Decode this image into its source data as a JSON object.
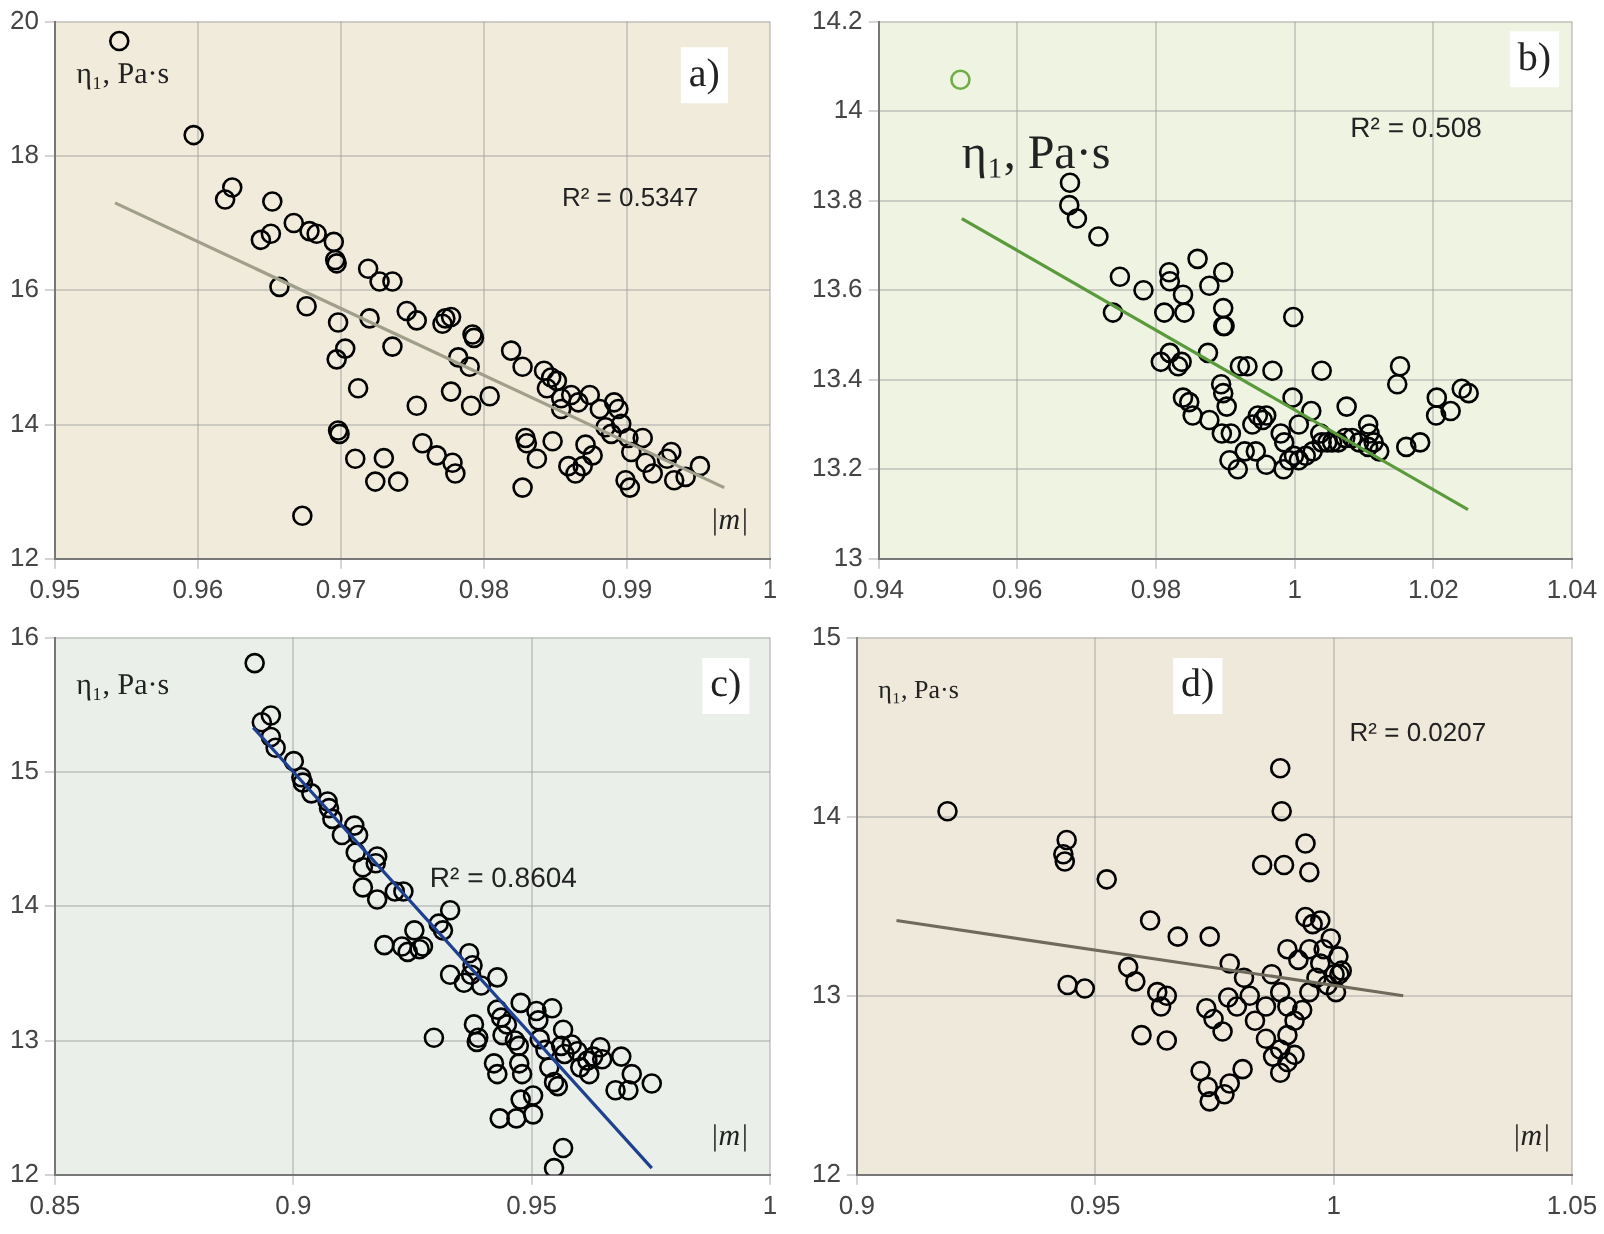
{
  "chart_data": [
    {
      "type": "scatter",
      "ylabel": "η₁, Pa·s",
      "xlabel": "|m|",
      "annotations": [
        "a)",
        "R² = 0.5347"
      ],
      "xlim": [
        0.95,
        1
      ],
      "xticks": [
        0.95,
        0.96,
        0.97,
        0.98,
        0.99,
        1
      ],
      "ylim": [
        12,
        20
      ],
      "yticks": [
        12,
        14,
        16,
        18,
        20
      ],
      "grid": true,
      "series": [
        {
          "color": "#000000",
          "marker": "circle",
          "x": [
            0.9545,
            0.9597,
            0.9624,
            0.9619,
            0.9652,
            0.9644,
            0.9651,
            0.9667,
            0.9678,
            0.9683,
            0.9695,
            0.9696,
            0.9697,
            0.9657,
            0.9676,
            0.9698,
            0.972,
            0.9719,
            0.9727,
            0.9736,
            0.9703,
            0.9697,
            0.9712,
            0.9698,
            0.9699,
            0.971,
            0.973,
            0.9724,
            0.974,
            0.9736,
            0.9746,
            0.9753,
            0.9771,
            0.9773,
            0.9777,
            0.9792,
            0.9793,
            0.9782,
            0.979,
            0.9777,
            0.9753,
            0.9791,
            0.9804,
            0.9757,
            0.9767,
            0.9778,
            0.978,
            0.9819,
            0.9827,
            0.9829,
            0.983,
            0.9837,
            0.9827,
            0.9842,
            0.9847,
            0.9844,
            0.9851,
            0.9854,
            0.9848,
            0.9854,
            0.9861,
            0.9866,
            0.9859,
            0.9864,
            0.9869,
            0.9871,
            0.9876,
            0.9874,
            0.9881,
            0.9885,
            0.9889,
            0.9891,
            0.9894,
            0.9896,
            0.9901,
            0.9903,
            0.9899,
            0.9902,
            0.9913,
            0.9918,
            0.9928,
            0.9931,
            0.9933,
            0.9941,
            0.9951,
            0.9911,
            0.9673
          ],
          "values": [
            19.71,
            18.31,
            17.53,
            17.35,
            17.32,
            16.75,
            16.84,
            17.0,
            16.88,
            16.84,
            16.72,
            16.45,
            16.4,
            16.05,
            15.76,
            15.52,
            15.58,
            16.32,
            16.13,
            16.13,
            15.13,
            14.97,
            14.54,
            13.91,
            13.86,
            13.49,
            13.5,
            13.15,
            13.15,
            15.16,
            15.69,
            15.55,
            15.5,
            15.58,
            15.6,
            15.34,
            15.29,
            15.0,
            14.86,
            14.49,
            14.28,
            14.28,
            14.42,
            13.72,
            13.54,
            13.43,
            13.27,
            15.1,
            14.86,
            13.8,
            13.72,
            13.49,
            13.06,
            14.8,
            14.7,
            14.54,
            14.65,
            14.39,
            13.75,
            14.23,
            14.44,
            14.33,
            13.38,
            13.27,
            13.38,
            13.7,
            13.54,
            14.44,
            14.23,
            13.96,
            13.86,
            14.33,
            14.23,
            14.01,
            13.8,
            13.59,
            13.17,
            13.06,
            13.43,
            13.27,
            13.49,
            13.59,
            13.17,
            13.22,
            13.38,
            13.8,
            12.64
          ]
        },
        {
          "type": "line",
          "color": "#a09f8c",
          "x": [
            0.9542,
            0.9968
          ],
          "values": [
            17.3,
            13.06
          ]
        }
      ]
    },
    {
      "type": "scatter",
      "ylabel": "η₁, Pa·s",
      "annotations": [
        "b)",
        "R² = 0.508"
      ],
      "xlim": [
        0.94,
        1.04
      ],
      "xticks": [
        0.94,
        0.96,
        0.98,
        1,
        1.02,
        1.04
      ],
      "ylim": [
        13,
        14.2
      ],
      "yticks": [
        13,
        13.2,
        13.4,
        13.6,
        13.8,
        14,
        14.2
      ],
      "grid": true,
      "series": [
        {
          "color": "#70ad47",
          "marker": "circle",
          "x": [
            0.9518
          ],
          "values": [
            14.07
          ]
        },
        {
          "color": "#000000",
          "marker": "circle",
          "x": [
            0.9676,
            0.9675,
            0.9686,
            0.9717,
            0.9748,
            0.9738,
            0.9782,
            0.9812,
            0.9819,
            0.982,
            0.9839,
            0.9841,
            0.986,
            0.9877,
            0.9897,
            0.9897,
            0.9897,
            0.9899,
            0.9807,
            0.982,
            0.9832,
            0.9837,
            0.9875,
            0.9839,
            0.9848,
            0.9853,
            0.9877,
            0.9894,
            0.9897,
            0.9902,
            0.9895,
            0.9908,
            0.9906,
            0.9918,
            0.9928,
            0.9921,
            0.9932,
            0.9939,
            0.9947,
            0.9954,
            0.9959,
            0.9944,
            0.9959,
            0.9968,
            0.998,
            0.9985,
            0.9984,
            0.9992,
            0.9999,
            0.9998,
            0.9997,
            1.0006,
            1.0006,
            1.0016,
            1.0026,
            1.0039,
            1.0024,
            1.0039,
            1.0037,
            1.0047,
            1.0054,
            1.0063,
            1.0073,
            1.0083,
            1.0075,
            1.0093,
            1.0106,
            1.0114,
            1.0122,
            1.0106,
            1.0108,
            1.0148,
            1.0152,
            1.0161,
            1.0181,
            1.0205,
            1.0204,
            1.0225,
            1.0241,
            1.0251
          ],
          "values": [
            13.84,
            13.79,
            13.76,
            13.72,
            13.63,
            13.55,
            13.6,
            13.55,
            13.64,
            13.62,
            13.59,
            13.55,
            13.67,
            13.61,
            13.64,
            13.56,
            13.52,
            13.52,
            13.44,
            13.46,
            13.43,
            13.44,
            13.46,
            13.36,
            13.35,
            13.32,
            13.31,
            13.39,
            13.37,
            13.34,
            13.28,
            13.28,
            13.22,
            13.2,
            13.24,
            13.43,
            13.43,
            13.3,
            13.32,
            13.31,
            13.32,
            13.24,
            13.21,
            13.42,
            13.28,
            13.26,
            13.2,
            13.22,
            13.23,
            13.54,
            13.36,
            13.3,
            13.22,
            13.23,
            13.24,
            13.26,
            13.33,
            13.42,
            13.28,
            13.26,
            13.26,
            13.26,
            13.27,
            13.27,
            13.34,
            13.26,
            13.25,
            13.26,
            13.24,
            13.3,
            13.28,
            13.39,
            13.43,
            13.25,
            13.26,
            13.36,
            13.32,
            13.33,
            13.38,
            13.37
          ]
        },
        {
          "type": "line",
          "color": "#5b9a3c",
          "x": [
            0.952,
            1.025
          ],
          "values": [
            13.76,
            13.11
          ]
        }
      ]
    },
    {
      "type": "scatter",
      "ylabel": "η₁, Pa·s",
      "xlabel": "|m|",
      "annotations": [
        "c)",
        "R² = 0.8604"
      ],
      "xlim": [
        0.85,
        1
      ],
      "xticks": [
        0.85,
        0.9,
        0.95,
        1
      ],
      "ylim": [
        12,
        16
      ],
      "yticks": [
        12,
        13,
        14,
        15,
        16
      ],
      "grid": true,
      "series": [
        {
          "color": "#000000",
          "marker": "circle",
          "x": [
            0.8919,
            0.8934,
            0.8953,
            0.8953,
            0.8963,
            0.9001,
            0.9017,
            0.902,
            0.9038,
            0.9072,
            0.9075,
            0.9082,
            0.9102,
            0.9128,
            0.9136,
            0.9131,
            0.9146,
            0.9176,
            0.9173,
            0.9146,
            0.9176,
            0.9213,
            0.9231,
            0.9191,
            0.9228,
            0.924,
            0.9254,
            0.9265,
            0.9272,
            0.9305,
            0.9314,
            0.9329,
            0.9329,
            0.9358,
            0.9369,
            0.9376,
            0.9373,
            0.9379,
            0.9388,
            0.9385,
            0.9295,
            0.9394,
            0.9428,
            0.9428,
            0.9436,
            0.9421,
            0.9428,
            0.9439,
            0.9448,
            0.9433,
            0.9465,
            0.9473,
            0.9477,
            0.9474,
            0.948,
            0.9477,
            0.9468,
            0.9503,
            0.9503,
            0.951,
            0.9514,
            0.9517,
            0.9529,
            0.9543,
            0.9537,
            0.9547,
            0.9555,
            0.9562,
            0.9569,
            0.9566,
            0.9584,
            0.9596,
            0.9602,
            0.9617,
            0.9629,
            0.9644,
            0.9648,
            0.9621,
            0.9688,
            0.971,
            0.9703,
            0.9676,
            0.9752,
            0.9566,
            0.9547
          ],
          "values": [
            15.81,
            15.37,
            15.42,
            15.26,
            15.18,
            15.08,
            14.96,
            14.92,
            14.84,
            14.78,
            14.73,
            14.65,
            14.53,
            14.6,
            14.53,
            14.4,
            14.29,
            14.37,
            14.32,
            14.14,
            14.05,
            14.11,
            14.11,
            13.71,
            13.7,
            13.66,
            13.82,
            13.68,
            13.7,
            13.87,
            13.82,
            13.97,
            13.49,
            13.43,
            13.65,
            13.56,
            13.49,
            13.12,
            13.02,
            12.99,
            13.02,
            13.41,
            13.47,
            13.23,
            13.17,
            12.83,
            12.75,
            13.04,
            13.12,
            12.42,
            13.0,
            12.96,
            13.28,
            12.83,
            12.75,
            12.56,
            12.42,
            12.45,
            12.59,
            13.22,
            13.15,
            13.01,
            12.93,
            13.24,
            12.8,
            12.69,
            12.66,
            12.96,
            12.9,
            13.08,
            12.97,
            12.92,
            12.8,
            12.85,
            12.88,
            12.95,
            12.86,
            12.75,
            12.88,
            12.75,
            12.63,
            12.63,
            12.68,
            12.2,
            12.05
          ]
        },
        {
          "type": "line",
          "color": "#1f3f8f",
          "x": [
            0.8916,
            0.9752
          ],
          "values": [
            15.33,
            12.05
          ]
        }
      ]
    },
    {
      "type": "scatter",
      "ylabel": "η₁, Pa·s",
      "xlabel": "|m|",
      "annotations": [
        "d)",
        "R² = 0.0207"
      ],
      "xlim": [
        0.9,
        1.05
      ],
      "xticks": [
        0.9,
        0.95,
        1,
        1.05
      ],
      "ylim": [
        12,
        15
      ],
      "yticks": [
        12,
        13,
        14,
        15
      ],
      "grid": true,
      "series": [
        {
          "color": "#000000",
          "marker": "circle",
          "x": [
            0.919,
            0.944,
            0.9433,
            0.9436,
            0.9524,
            0.9442,
            0.9478,
            0.9615,
            0.9673,
            0.974,
            0.9569,
            0.9584,
            0.963,
            0.9638,
            0.965,
            0.9597,
            0.965,
            0.9721,
            0.9736,
            0.974,
            0.9771,
            0.9782,
            0.9809,
            0.9733,
            0.9748,
            0.9767,
            0.9779,
            0.9797,
            0.9782,
            0.9812,
            0.9824,
            0.9835,
            0.9858,
            0.987,
            0.9858,
            0.9873,
            0.9888,
            0.9903,
            0.9918,
            0.9934,
            0.9949,
            0.9964,
            0.9972,
            0.9979,
            0.9994,
            1.001,
            1.0017,
            1.0002,
            0.9987,
            0.9956,
            0.9972,
            0.9941,
            0.9888,
            0.9891,
            0.9896,
            0.985,
            0.9941,
            0.9949,
            0.9903,
            0.9926,
            0.9949,
            0.9888,
            0.9903,
            0.9903,
            0.9888,
            0.9918,
            1.0012,
            1.0005
          ],
          "values": [
            14.03,
            13.87,
            13.79,
            13.75,
            13.65,
            13.06,
            13.04,
            13.42,
            13.33,
            13.33,
            13.16,
            13.08,
            13.02,
            12.94,
            13.0,
            12.78,
            12.75,
            12.58,
            12.49,
            12.41,
            12.45,
            12.51,
            12.59,
            12.93,
            12.87,
            12.8,
            12.99,
            12.94,
            13.18,
            13.1,
            13.0,
            12.86,
            12.94,
            13.12,
            12.76,
            12.66,
            12.7,
            12.78,
            12.86,
            12.92,
            13.02,
            13.1,
            13.18,
            13.26,
            13.32,
            13.22,
            13.14,
            13.12,
            13.06,
            13.4,
            13.42,
            13.44,
            14.27,
            14.03,
            13.73,
            13.73,
            13.85,
            13.69,
            13.26,
            13.2,
            13.26,
            13.02,
            12.94,
            12.63,
            12.57,
            12.67,
            13.12,
            13.02
          ]
        },
        {
          "type": "line",
          "color": "#6e6b5c",
          "x": [
            0.9083,
            1.0146
          ],
          "values": [
            13.42,
            13.0
          ]
        }
      ]
    }
  ]
}
